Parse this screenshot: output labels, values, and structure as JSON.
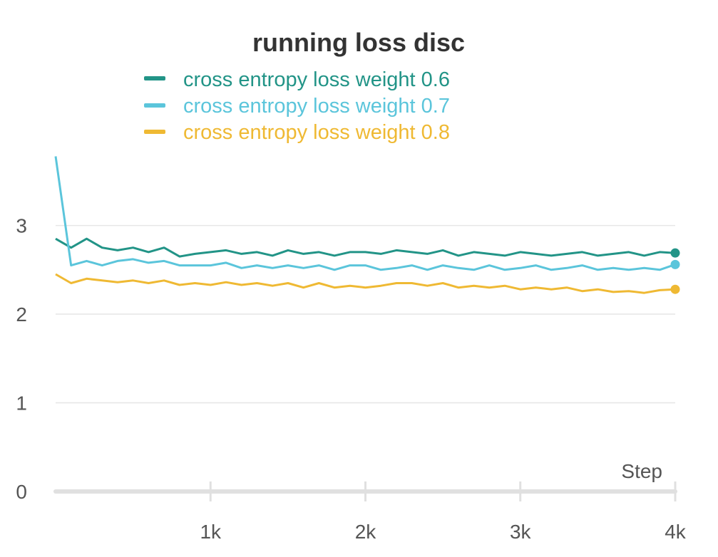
{
  "chart_data": {
    "type": "line",
    "title": "running loss disc",
    "xlabel": "Step",
    "ylabel": "",
    "xlim": [
      0,
      4000
    ],
    "ylim": [
      0,
      3.8
    ],
    "x_ticks": [
      1000,
      2000,
      3000,
      4000
    ],
    "x_tick_labels": [
      "1k",
      "2k",
      "3k",
      "4k"
    ],
    "y_ticks": [
      0,
      1,
      2,
      3
    ],
    "y_tick_labels": [
      "0",
      "1",
      "2",
      "3"
    ],
    "grid": true,
    "legend_position": "top",
    "x": [
      0,
      100,
      200,
      300,
      400,
      500,
      600,
      700,
      800,
      900,
      1000,
      1100,
      1200,
      1300,
      1400,
      1500,
      1600,
      1700,
      1800,
      1900,
      2000,
      2100,
      2200,
      2300,
      2400,
      2500,
      2600,
      2700,
      2800,
      2900,
      3000,
      3100,
      3200,
      3300,
      3400,
      3500,
      3600,
      3700,
      3800,
      3900,
      4000
    ],
    "series": [
      {
        "name": "cross entropy loss weight 0.6",
        "color": "#229487",
        "values": [
          2.85,
          2.75,
          2.85,
          2.75,
          2.72,
          2.75,
          2.7,
          2.75,
          2.65,
          2.68,
          2.7,
          2.72,
          2.68,
          2.7,
          2.66,
          2.72,
          2.68,
          2.7,
          2.66,
          2.7,
          2.7,
          2.68,
          2.72,
          2.7,
          2.68,
          2.72,
          2.66,
          2.7,
          2.68,
          2.66,
          2.7,
          2.68,
          2.66,
          2.68,
          2.7,
          2.66,
          2.68,
          2.7,
          2.66,
          2.7,
          2.69
        ]
      },
      {
        "name": "cross entropy loss weight 0.7",
        "color": "#5bc5db",
        "values": [
          3.78,
          2.55,
          2.6,
          2.55,
          2.6,
          2.62,
          2.58,
          2.6,
          2.55,
          2.55,
          2.55,
          2.58,
          2.52,
          2.55,
          2.52,
          2.55,
          2.52,
          2.55,
          2.5,
          2.55,
          2.55,
          2.5,
          2.52,
          2.55,
          2.5,
          2.55,
          2.52,
          2.5,
          2.55,
          2.5,
          2.52,
          2.55,
          2.5,
          2.52,
          2.55,
          2.5,
          2.52,
          2.5,
          2.52,
          2.5,
          2.56
        ]
      },
      {
        "name": "cross entropy loss weight 0.8",
        "color": "#efb933",
        "values": [
          2.45,
          2.35,
          2.4,
          2.38,
          2.36,
          2.38,
          2.35,
          2.38,
          2.33,
          2.35,
          2.33,
          2.36,
          2.33,
          2.35,
          2.32,
          2.35,
          2.3,
          2.35,
          2.3,
          2.32,
          2.3,
          2.32,
          2.35,
          2.35,
          2.32,
          2.35,
          2.3,
          2.32,
          2.3,
          2.32,
          2.28,
          2.3,
          2.28,
          2.3,
          2.26,
          2.28,
          2.25,
          2.26,
          2.24,
          2.27,
          2.28
        ]
      }
    ]
  }
}
